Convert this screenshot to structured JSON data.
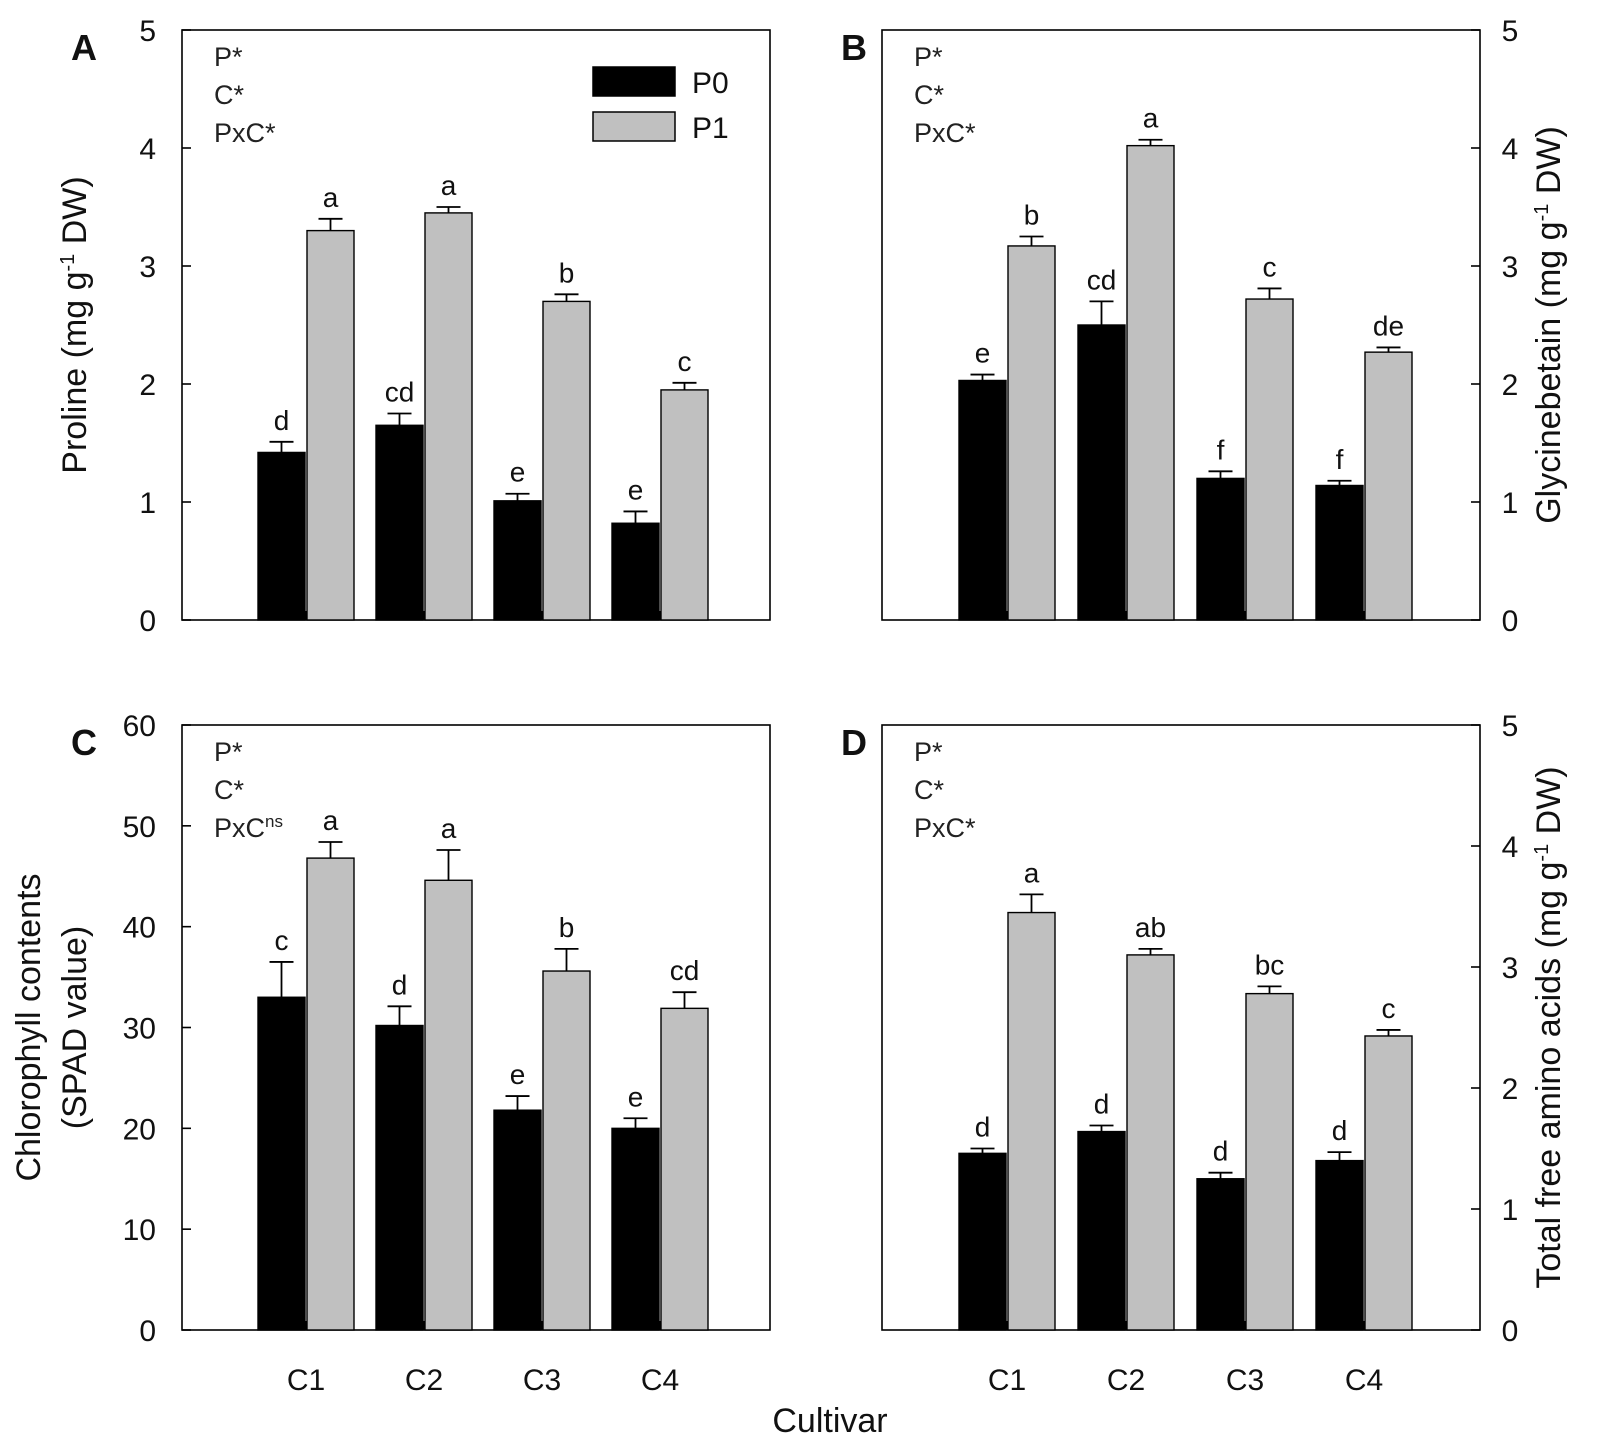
{
  "figure": {
    "xlabel": "Cultivar",
    "legend": {
      "position": "top-right of panel A",
      "entries": [
        "P0",
        "P1"
      ]
    },
    "colors": {
      "P0": "#000000",
      "P1": "#c0c0c0",
      "axis": "#000000"
    }
  },
  "chart_data": [
    {
      "type": "bar",
      "panel": "A",
      "ylabel_main": "Proline (mg g",
      "ylabel_sup": "-1",
      "ylabel_tail": " DW)",
      "axis_side": "left",
      "ylim": [
        0,
        5
      ],
      "yticks": [
        "0",
        "1",
        "2",
        "3",
        "4",
        "5"
      ],
      "categories": [
        "C1",
        "C2",
        "C3",
        "C4"
      ],
      "stats": [
        {
          "main": "P*",
          "sup": ""
        },
        {
          "main": "C*",
          "sup": ""
        },
        {
          "main": "PxC*",
          "sup": ""
        }
      ],
      "series": [
        {
          "name": "P0",
          "values": [
            1.42,
            1.65,
            1.01,
            0.82
          ],
          "errors": [
            0.09,
            0.1,
            0.06,
            0.1
          ],
          "letters": [
            "d",
            "cd",
            "e",
            "e"
          ]
        },
        {
          "name": "P1",
          "values": [
            3.3,
            3.45,
            2.7,
            1.95
          ],
          "errors": [
            0.1,
            0.05,
            0.06,
            0.06
          ],
          "letters": [
            "a",
            "a",
            "b",
            "c"
          ]
        }
      ]
    },
    {
      "type": "bar",
      "panel": "B",
      "ylabel_main": "Glycinebetain (mg g",
      "ylabel_sup": "-1",
      "ylabel_tail": " DW)",
      "axis_side": "right",
      "ylim": [
        0,
        5
      ],
      "yticks": [
        "0",
        "1",
        "2",
        "3",
        "4",
        "5"
      ],
      "categories": [
        "C1",
        "C2",
        "C3",
        "C4"
      ],
      "stats": [
        {
          "main": "P*",
          "sup": ""
        },
        {
          "main": "C*",
          "sup": ""
        },
        {
          "main": "PxC*",
          "sup": ""
        }
      ],
      "series": [
        {
          "name": "P0",
          "values": [
            2.03,
            2.5,
            1.2,
            1.14
          ],
          "errors": [
            0.05,
            0.2,
            0.06,
            0.04
          ],
          "letters": [
            "e",
            "cd",
            "f",
            "f"
          ]
        },
        {
          "name": "P1",
          "values": [
            3.17,
            4.02,
            2.72,
            2.27
          ],
          "errors": [
            0.08,
            0.05,
            0.09,
            0.04
          ],
          "letters": [
            "b",
            "a",
            "c",
            "de"
          ]
        }
      ]
    },
    {
      "type": "bar",
      "panel": "C",
      "ylabel_main": "Chlorophyll contents",
      "ylabel_line2": "(SPAD value)",
      "axis_side": "left",
      "ylim": [
        0,
        60
      ],
      "yticks": [
        "0",
        "10",
        "20",
        "30",
        "40",
        "50",
        "60"
      ],
      "categories": [
        "C1",
        "C2",
        "C3",
        "C4"
      ],
      "stats": [
        {
          "main": "P*",
          "sup": ""
        },
        {
          "main": "C*",
          "sup": ""
        },
        {
          "main": "PxC",
          "sup": "ns"
        }
      ],
      "series": [
        {
          "name": "P0",
          "values": [
            33.0,
            30.2,
            21.8,
            20.0
          ],
          "errors": [
            3.5,
            1.9,
            1.4,
            1.0
          ],
          "letters": [
            "c",
            "d",
            "e",
            "e"
          ]
        },
        {
          "name": "P1",
          "values": [
            46.8,
            44.6,
            35.6,
            31.9
          ],
          "errors": [
            1.6,
            3.0,
            2.2,
            1.6
          ],
          "letters": [
            "a",
            "a",
            "b",
            "cd"
          ]
        }
      ]
    },
    {
      "type": "bar",
      "panel": "D",
      "ylabel_main": "Total free amino acids (mg g",
      "ylabel_sup": "-1",
      "ylabel_tail": " DW)",
      "axis_side": "right",
      "ylim": [
        0,
        5
      ],
      "yticks": [
        "0",
        "1",
        "2",
        "3",
        "4",
        "5"
      ],
      "categories": [
        "C1",
        "C2",
        "C3",
        "C4"
      ],
      "stats": [
        {
          "main": "P*",
          "sup": ""
        },
        {
          "main": "C*",
          "sup": ""
        },
        {
          "main": "PxC*",
          "sup": ""
        }
      ],
      "series": [
        {
          "name": "P0",
          "values": [
            1.46,
            1.64,
            1.25,
            1.4
          ],
          "errors": [
            0.04,
            0.05,
            0.05,
            0.07
          ],
          "letters": [
            "d",
            "d",
            "d",
            "d"
          ]
        },
        {
          "name": "P1",
          "values": [
            3.45,
            3.1,
            2.78,
            2.43
          ],
          "errors": [
            0.15,
            0.05,
            0.06,
            0.05
          ],
          "letters": [
            "a",
            "ab",
            "bc",
            "c"
          ]
        }
      ]
    }
  ]
}
